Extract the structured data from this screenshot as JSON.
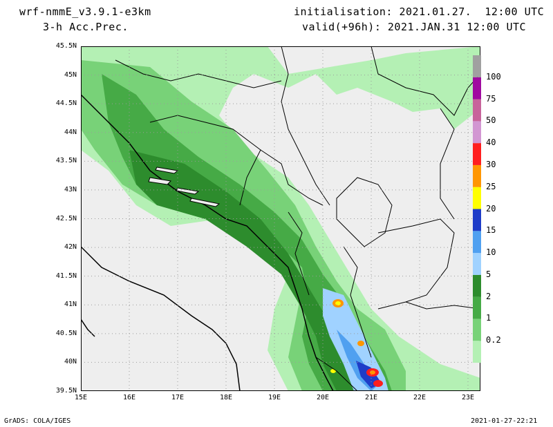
{
  "header": {
    "model": "wrf-nmmE_v3.9.1-e3km",
    "variable": "3-h Acc.Prec.",
    "init": "initialisation: 2021.01.27.  12:00 UTC",
    "valid": "valid(+96h): 2021.JAN.31 12:00 UTC"
  },
  "footer": {
    "left": "GrADS: COLA/IGES",
    "right": "2021-01-27-22:21"
  },
  "axes": {
    "y_labels": [
      "45.5N",
      "45N",
      "44.5N",
      "44N",
      "43.5N",
      "43N",
      "42.5N",
      "42N",
      "41.5N",
      "41N",
      "40.5N",
      "40N",
      "39.5N"
    ],
    "x_labels": [
      "15E",
      "16E",
      "17E",
      "18E",
      "19E",
      "20E",
      "21E",
      "22E",
      "23E"
    ]
  },
  "colorbar": {
    "levels": [
      "0.2",
      "1",
      "2",
      "5",
      "10",
      "15",
      "20",
      "25",
      "30",
      "40",
      "50",
      "75",
      "100"
    ],
    "colors": [
      "#b4f0b4",
      "#78d278",
      "#46aa46",
      "#2d8c2d",
      "#a0d2ff",
      "#50a0f0",
      "#1e3cc8",
      "#ffff00",
      "#ff9600",
      "#ff1e1e",
      "#d296d2",
      "#c8649b",
      "#a00aa0",
      "#a0a0a0"
    ]
  },
  "map": {
    "land_color": "#eeeeee",
    "grid_color": "#9a9a9a"
  }
}
